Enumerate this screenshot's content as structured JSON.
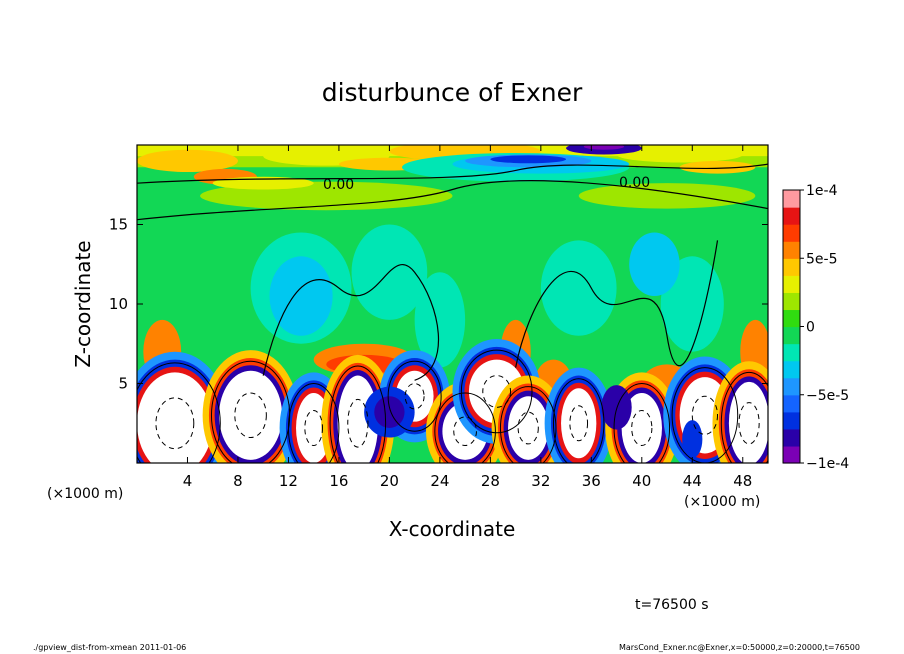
{
  "chart_data": {
    "type": "heatmap",
    "title": "disturbunce of Exner",
    "xlabel": "X-coordinate",
    "ylabel": "Z-coordinate",
    "x_unit": "(×1000 m)",
    "y_unit": "(×1000 m)",
    "xlim": [
      0,
      50
    ],
    "ylim": [
      0,
      20
    ],
    "x_ticks": [
      "4",
      "8",
      "12",
      "16",
      "20",
      "24",
      "28",
      "32",
      "36",
      "40",
      "44",
      "48"
    ],
    "x_tick_values": [
      4,
      8,
      12,
      16,
      20,
      24,
      28,
      32,
      36,
      40,
      44,
      48
    ],
    "y_ticks": [
      "5",
      "10",
      "15"
    ],
    "y_tick_values": [
      5,
      10,
      15
    ],
    "colorbar": {
      "min": -0.0001,
      "max": 0.0001,
      "tick_labels": [
        "1e-4",
        "5e-5",
        "0",
        "−5e-5",
        "−1e-4"
      ],
      "tick_values": [
        0.0001,
        5e-05,
        0,
        -5e-05,
        -0.0001
      ],
      "colors": [
        "#7b00b5",
        "#2a00a8",
        "#0030e0",
        "#1464ff",
        "#1e96ff",
        "#00c8f0",
        "#00e6b4",
        "#12d755",
        "#30dc10",
        "#9ee600",
        "#e6f000",
        "#ffc800",
        "#ff8200",
        "#ff3c00",
        "#e61414",
        "#ff9aa0"
      ]
    },
    "contour_labels": [
      "0.00",
      "0.00"
    ],
    "grid": false,
    "time_label": "t=76500 s"
  },
  "footer": {
    "left": "./gpview_dist-from-xmean  2011-01-06",
    "right": "MarsCond_Exner.nc@Exner,x=0:50000,z=0:20000,t=76500"
  }
}
